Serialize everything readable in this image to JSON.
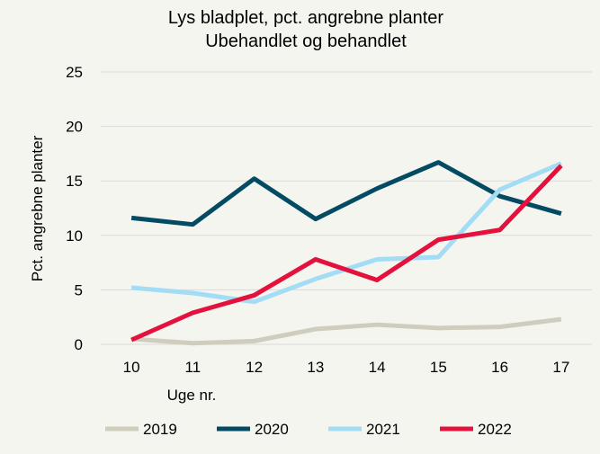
{
  "chart_data": {
    "type": "line",
    "title": "Lys bladplet, pct. angrebne planter",
    "subtitle": "Ubehandlet og behandlet",
    "xlabel": "Uge nr.",
    "ylabel": "Pct. angrebne planter",
    "categories": [
      "10",
      "11",
      "12",
      "13",
      "14",
      "15",
      "16",
      "17"
    ],
    "ylim": [
      0,
      25
    ],
    "yticks": [
      "0",
      "5",
      "10",
      "15",
      "20",
      "25"
    ],
    "grid": true,
    "legend": "bottom",
    "series": [
      {
        "name": "2019",
        "color": "#cfcdbd",
        "values": [
          0.5,
          0.1,
          0.3,
          1.4,
          1.8,
          1.5,
          1.6,
          2.3
        ]
      },
      {
        "name": "2020",
        "color": "#034a63",
        "values": [
          11.6,
          11.0,
          15.2,
          11.5,
          14.3,
          16.7,
          13.6,
          12.0
        ]
      },
      {
        "name": "2021",
        "color": "#a3dcf5",
        "values": [
          5.2,
          4.7,
          3.9,
          6.0,
          7.8,
          8.0,
          14.2,
          16.6
        ]
      },
      {
        "name": "2022",
        "color": "#e4113c",
        "values": [
          0.4,
          2.9,
          4.5,
          7.8,
          5.9,
          9.6,
          10.5,
          16.4
        ]
      }
    ]
  }
}
